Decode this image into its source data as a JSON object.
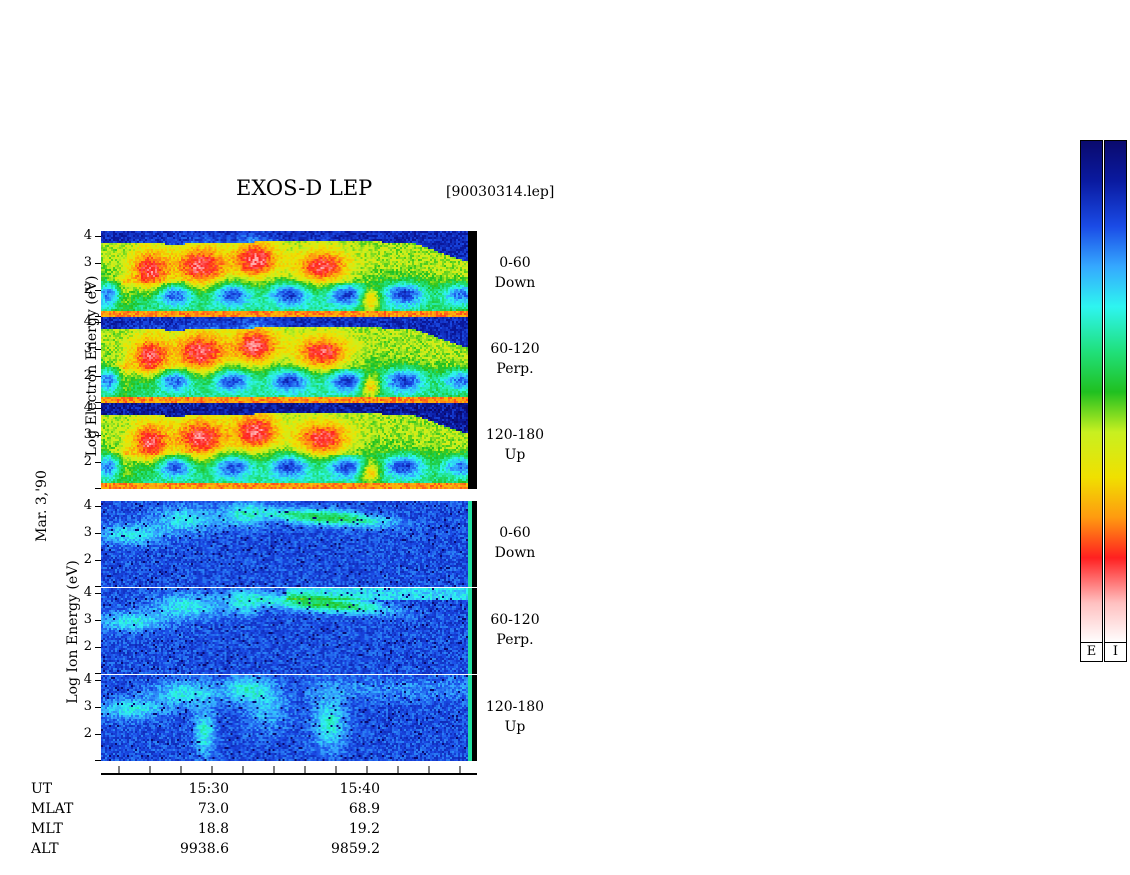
{
  "header": {
    "title": "EXOS-D LEP",
    "file_label": "[90030314.lep]"
  },
  "side_labels": {
    "date": "Mar. 3,'90",
    "electron_axis": "Log   Electron  Energy (eV)",
    "ion_axis": "Log   Ion  Energy (eV)"
  },
  "panels": [
    {
      "species": "Electron",
      "angle": "0-60",
      "direction": "Down"
    },
    {
      "species": "Electron",
      "angle": "60-120",
      "direction": "Perp."
    },
    {
      "species": "Electron",
      "angle": "120-180",
      "direction": "Up"
    },
    {
      "species": "Ion",
      "angle": "0-60",
      "direction": "Down"
    },
    {
      "species": "Ion",
      "angle": "60-120",
      "direction": "Perp."
    },
    {
      "species": "Ion",
      "angle": "120-180",
      "direction": "Up"
    }
  ],
  "colorbar": {
    "electron_label": "E",
    "ion_label": "I",
    "colors": [
      "#0a0a6e",
      "#0a1aa0",
      "#1a4be6",
      "#35a8ff",
      "#2ef5f0",
      "#20e07a",
      "#20c020",
      "#c8f020",
      "#f0e000",
      "#ff9a10",
      "#ff2020",
      "#ffc0c0",
      "#ffffff"
    ]
  },
  "ephemeris": {
    "rows": [
      {
        "label": "UT",
        "values": [
          "15:30",
          "15:40"
        ]
      },
      {
        "label": "MLAT",
        "values": [
          "73.0",
          "68.9"
        ]
      },
      {
        "label": "MLT",
        "values": [
          "18.8",
          "19.2"
        ]
      },
      {
        "label": "ALT",
        "values": [
          "9938.6",
          "9859.2"
        ]
      }
    ]
  },
  "chart_data": {
    "type": "heatmap",
    "title": "EXOS-D LEP",
    "subtitle": "[90030314.lep]",
    "xlabel": "UT",
    "x_tick_labels": [
      "15:30",
      "15:40"
    ],
    "y_tick_labels": [
      "2",
      "3",
      "4"
    ],
    "ylabel": "Log Energy (eV)",
    "series": [
      {
        "name": "Electron 0-60 Down"
      },
      {
        "name": "Electron 60-120 Perp."
      },
      {
        "name": "Electron 120-180 Up"
      },
      {
        "name": "Ion 0-60 Down"
      },
      {
        "name": "Ion 60-120 Perp."
      },
      {
        "name": "Ion 120-180 Up"
      }
    ]
  }
}
